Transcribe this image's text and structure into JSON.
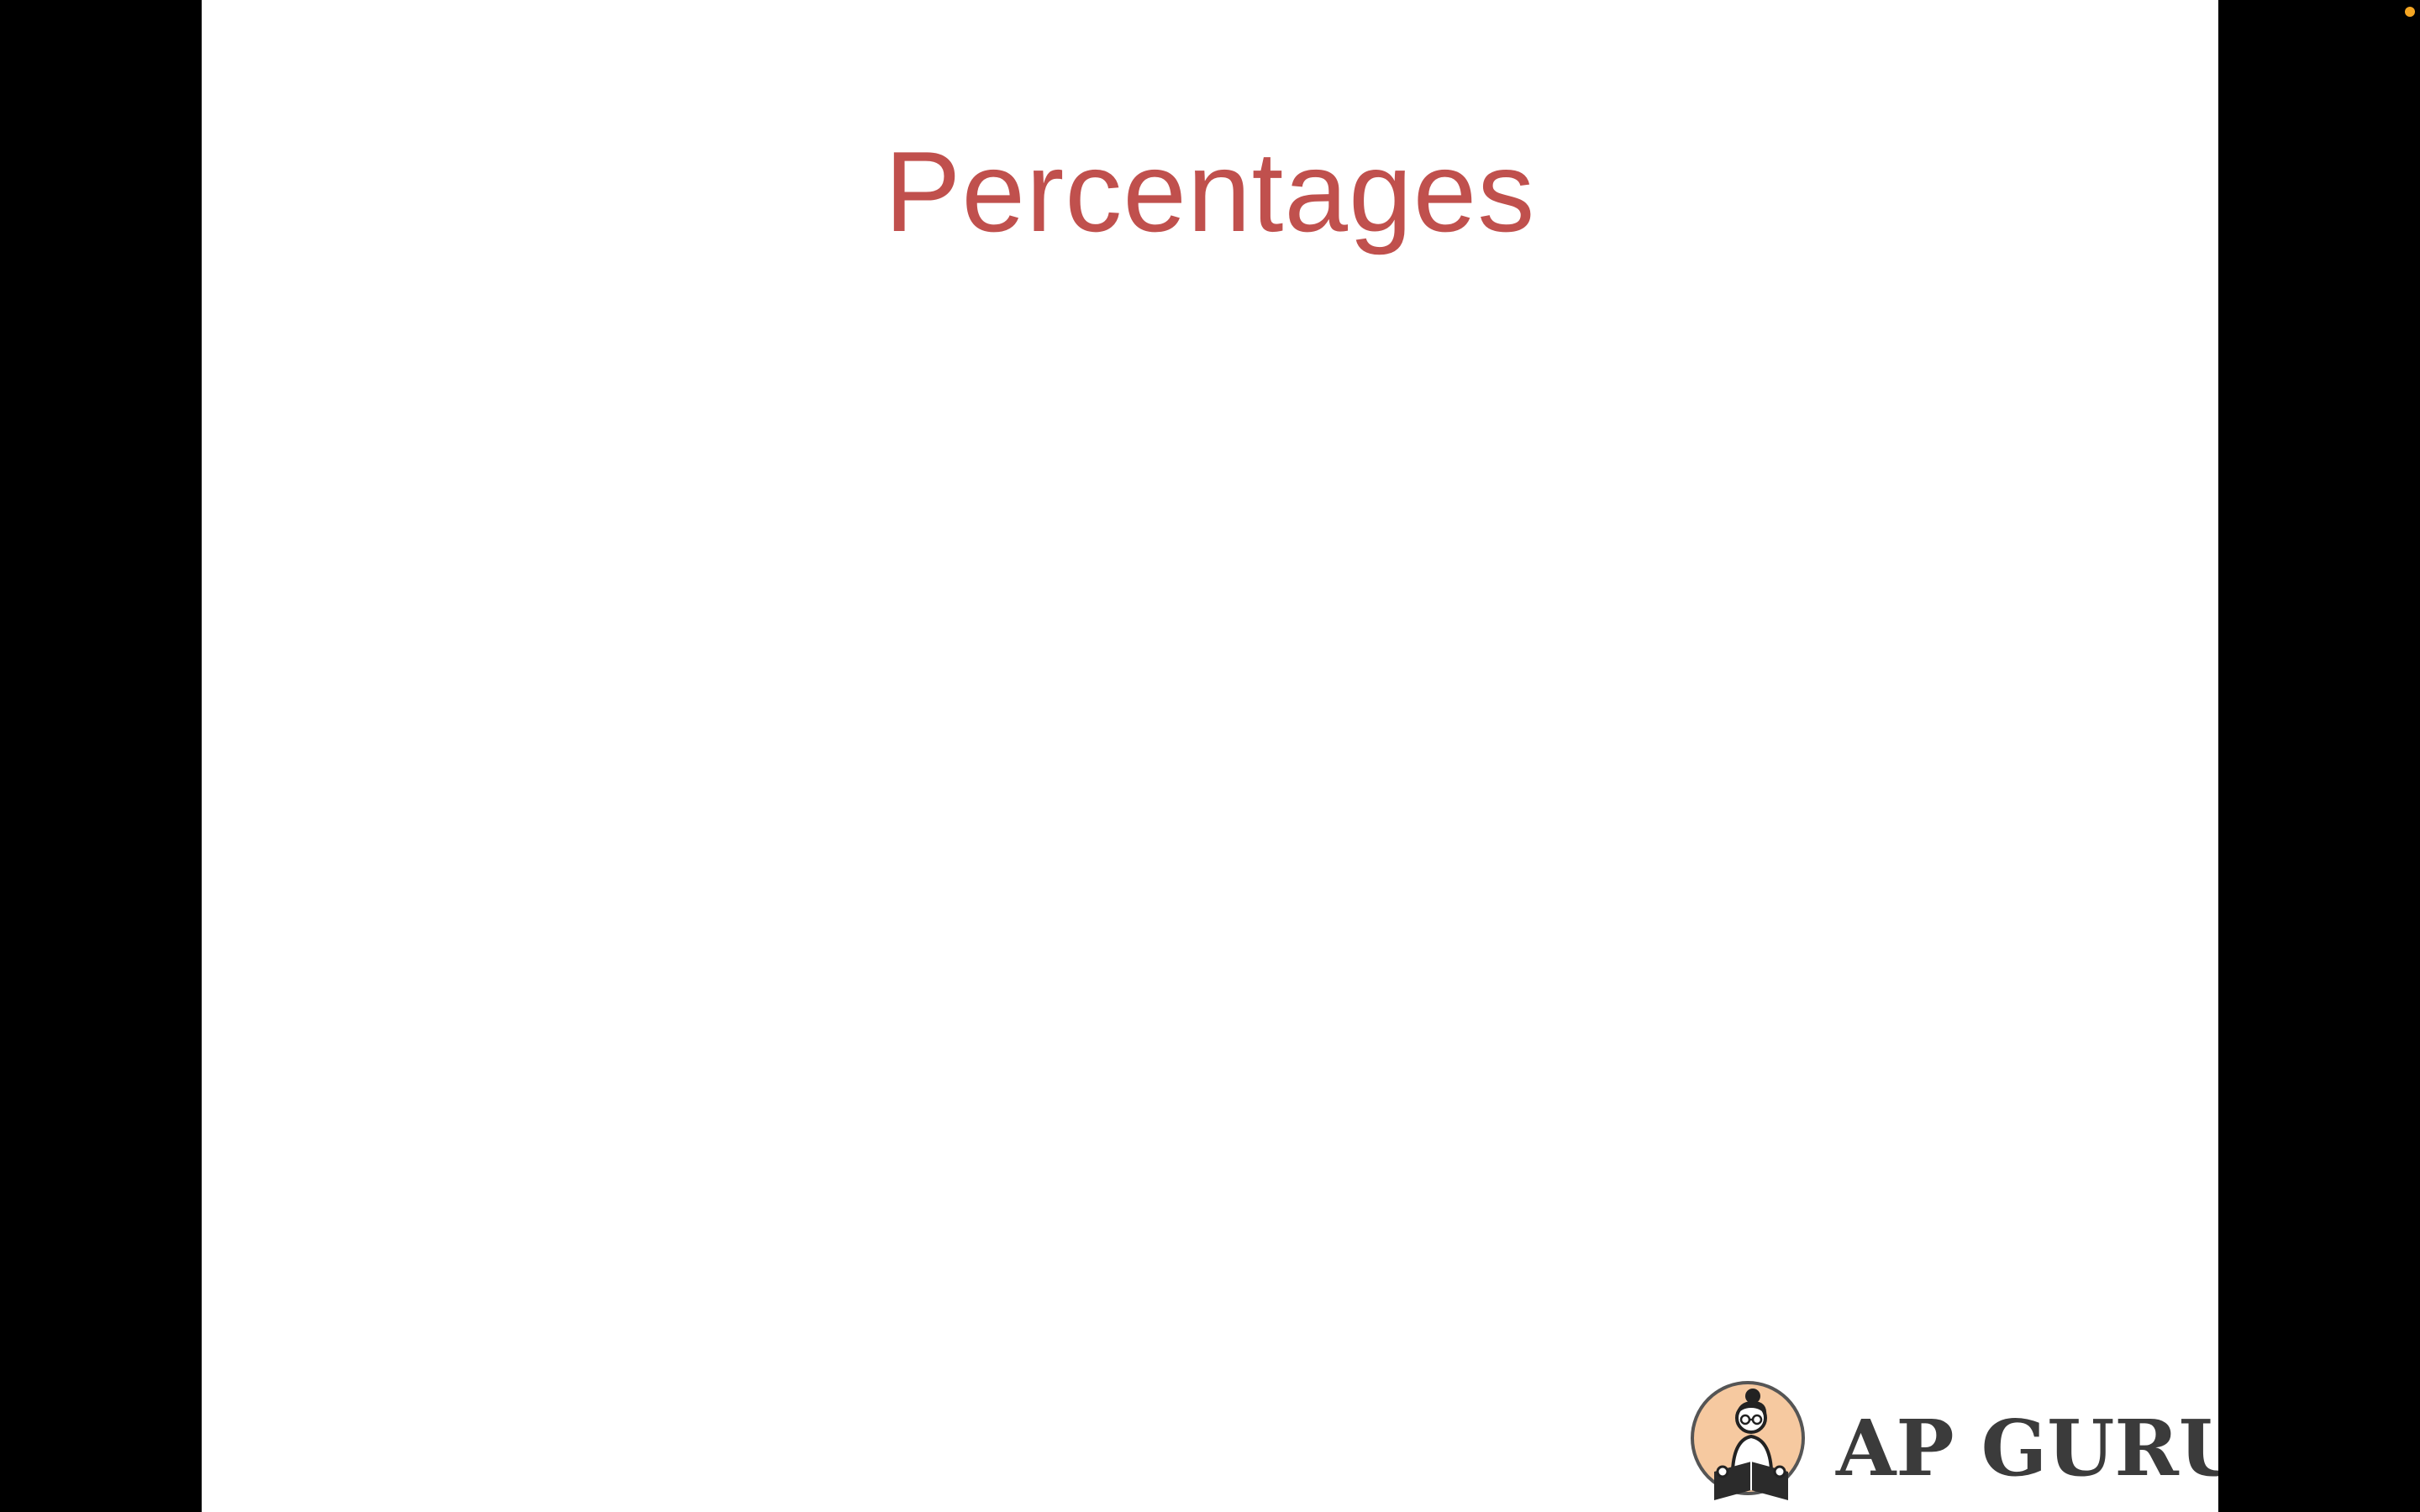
{
  "slide": {
    "title": "Percentages",
    "brand": {
      "name": "AP GURU",
      "logo_icon": "reading-person-logo-icon"
    }
  },
  "colors": {
    "background": "#000000",
    "slide_background": "#ffffff",
    "title": "#c0504d",
    "brand_text": "#3b3b3b",
    "logo_circle": "#f6c9a0",
    "status_dot": "#f5a623"
  }
}
